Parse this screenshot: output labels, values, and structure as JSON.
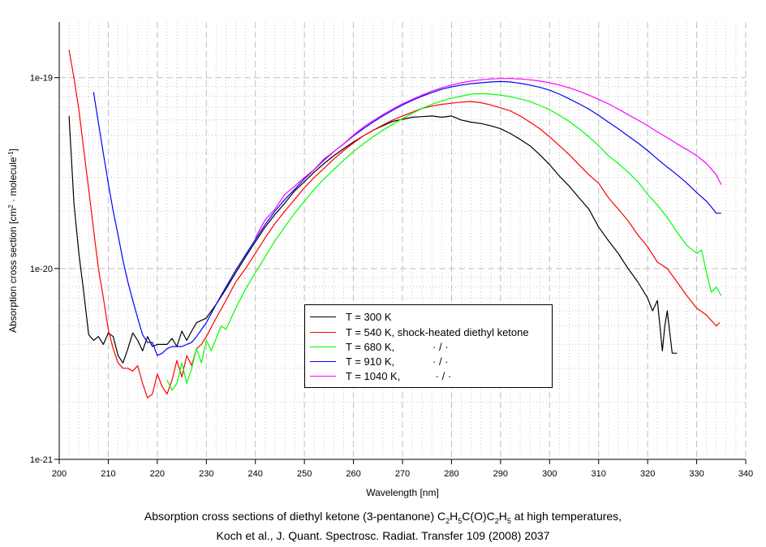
{
  "chart_data": {
    "type": "line",
    "title": "",
    "xlabel": "Wavelength [nm]",
    "ylabel": "Absorption cross section [cm² · molecule⁻¹]",
    "ylabel_parts": {
      "main": "Absorption cross section [cm",
      "sup1": "2",
      "mid": " · molecule",
      "sup2": "-1",
      "end": "]"
    },
    "xlim": [
      200,
      340
    ],
    "ylim": [
      1e-21,
      1.96e-19
    ],
    "yscale": "log",
    "y_unit_factor": 1e-20,
    "grid": true,
    "legend_position": "center-bottom",
    "x_ticks": [
      200,
      210,
      220,
      230,
      240,
      250,
      260,
      270,
      280,
      290,
      300,
      310,
      320,
      330,
      340
    ],
    "y_ticks": [
      {
        "value": 1e-21,
        "label": "1e-21"
      },
      {
        "value": 1e-20,
        "label": "1e-20"
      },
      {
        "value": 1e-19,
        "label": "1e-19"
      }
    ],
    "series": [
      {
        "name": "T = 300 K",
        "legend_label": "T = 300 K",
        "color": "#000000",
        "x": [
          202,
          203,
          204,
          205,
          206,
          207,
          208,
          209,
          210,
          211,
          212,
          213,
          214,
          215,
          216,
          217,
          218,
          219,
          220,
          221,
          222,
          223,
          224,
          225,
          226,
          227,
          228,
          230,
          232,
          234,
          236,
          238,
          240,
          242,
          244,
          246,
          248,
          250,
          252,
          254,
          256,
          258,
          260,
          262,
          264,
          266,
          268,
          270,
          272,
          274,
          276,
          278,
          280,
          282,
          284,
          286,
          288,
          290,
          292,
          294,
          296,
          298,
          300,
          302,
          304,
          306,
          308,
          310,
          312,
          314,
          316,
          318,
          320,
          321,
          322,
          323,
          323.5,
          324,
          325,
          326
        ],
        "values": [
          6.3,
          2.2,
          1.2,
          0.75,
          0.45,
          0.42,
          0.44,
          0.4,
          0.46,
          0.44,
          0.35,
          0.32,
          0.38,
          0.46,
          0.42,
          0.37,
          0.44,
          0.39,
          0.4,
          0.4,
          0.4,
          0.43,
          0.39,
          0.47,
          0.42,
          0.47,
          0.52,
          0.55,
          0.65,
          0.78,
          0.95,
          1.15,
          1.38,
          1.65,
          1.92,
          2.2,
          2.55,
          2.85,
          3.2,
          3.55,
          3.9,
          4.25,
          4.6,
          4.95,
          5.3,
          5.6,
          5.9,
          6.05,
          6.2,
          6.25,
          6.3,
          6.2,
          6.3,
          6.0,
          5.85,
          5.75,
          5.6,
          5.4,
          5.1,
          4.75,
          4.4,
          3.95,
          3.5,
          3.05,
          2.7,
          2.35,
          2.05,
          1.65,
          1.4,
          1.2,
          1.0,
          0.85,
          0.7,
          0.6,
          0.68,
          0.37,
          0.5,
          0.6,
          0.36,
          0.36
        ]
      },
      {
        "name": "T = 540 K, shock-heated diethyl ketone",
        "legend_label": "T = 540 K, shock-heated diethyl ketone",
        "color": "#ff0000",
        "x": [
          202,
          203,
          204,
          205,
          206,
          207,
          208,
          209,
          210,
          211,
          212,
          213,
          214,
          215,
          216,
          217,
          218,
          219,
          220,
          221,
          222,
          223,
          224,
          225,
          226,
          227,
          228,
          229,
          230,
          232,
          234,
          236,
          238,
          240,
          242,
          244,
          246,
          248,
          250,
          252,
          254,
          256,
          258,
          260,
          262,
          264,
          266,
          268,
          270,
          272,
          274,
          276,
          278,
          280,
          282,
          284,
          286,
          288,
          290,
          292,
          294,
          296,
          298,
          300,
          302,
          304,
          306,
          308,
          310,
          312,
          314,
          316,
          318,
          320,
          322,
          324,
          326,
          328,
          330,
          332,
          334,
          334.7
        ],
        "values": [
          14,
          10,
          6.8,
          4.2,
          2.6,
          1.6,
          1.0,
          0.7,
          0.48,
          0.38,
          0.32,
          0.3,
          0.3,
          0.29,
          0.31,
          0.25,
          0.21,
          0.22,
          0.28,
          0.24,
          0.22,
          0.26,
          0.33,
          0.27,
          0.35,
          0.31,
          0.38,
          0.4,
          0.44,
          0.55,
          0.68,
          0.85,
          1.0,
          1.2,
          1.45,
          1.72,
          2.0,
          2.3,
          2.65,
          3.0,
          3.35,
          3.75,
          4.15,
          4.55,
          4.95,
          5.3,
          5.65,
          6.0,
          6.3,
          6.6,
          6.9,
          7.1,
          7.25,
          7.35,
          7.45,
          7.5,
          7.4,
          7.2,
          6.95,
          6.7,
          6.3,
          5.85,
          5.4,
          4.9,
          4.4,
          3.95,
          3.5,
          3.1,
          2.8,
          2.35,
          2.05,
          1.78,
          1.5,
          1.3,
          1.08,
          1.0,
          0.85,
          0.72,
          0.62,
          0.57,
          0.5,
          0.52
        ]
      },
      {
        "name": "T = 680 K, · / ·",
        "legend_label": "T = 680 K,             · / ·",
        "color": "#00ff00",
        "x": [
          222,
          223,
          224,
          225,
          226,
          227,
          228,
          229,
          230,
          231,
          232,
          233,
          234,
          236,
          238,
          240,
          242,
          244,
          246,
          248,
          250,
          252,
          254,
          256,
          258,
          260,
          262,
          264,
          266,
          268,
          270,
          272,
          274,
          276,
          278,
          280,
          282,
          284,
          286,
          288,
          290,
          292,
          294,
          296,
          298,
          300,
          302,
          304,
          306,
          308,
          310,
          312,
          314,
          316,
          318,
          320,
          322,
          324,
          326,
          328,
          330,
          331,
          332,
          333,
          334,
          335
        ],
        "values": [
          0.26,
          0.23,
          0.25,
          0.32,
          0.25,
          0.3,
          0.38,
          0.32,
          0.42,
          0.37,
          0.43,
          0.5,
          0.48,
          0.62,
          0.78,
          0.95,
          1.15,
          1.4,
          1.65,
          1.95,
          2.25,
          2.6,
          2.95,
          3.3,
          3.7,
          4.1,
          4.5,
          4.9,
          5.3,
          5.7,
          6.1,
          6.5,
          6.9,
          7.25,
          7.55,
          7.8,
          8.0,
          8.2,
          8.25,
          8.2,
          8.1,
          7.95,
          7.75,
          7.5,
          7.15,
          6.8,
          6.35,
          5.9,
          5.4,
          4.9,
          4.4,
          3.9,
          3.55,
          3.2,
          2.85,
          2.45,
          2.15,
          1.85,
          1.55,
          1.32,
          1.2,
          1.25,
          0.95,
          0.75,
          0.8,
          0.72
        ]
      },
      {
        "name": "T = 910 K, · / ·",
        "legend_label": "T = 910 K,             · / ·",
        "color": "#0000ff",
        "x": [
          207,
          208,
          209,
          210,
          211,
          212,
          213,
          214,
          215,
          216,
          217,
          218,
          219,
          220,
          221,
          222,
          223,
          224,
          225,
          226,
          227,
          228,
          230,
          232,
          234,
          236,
          238,
          240,
          242,
          244,
          246,
          248,
          250,
          252,
          254,
          256,
          258,
          260,
          262,
          264,
          266,
          268,
          270,
          272,
          274,
          276,
          278,
          280,
          282,
          284,
          286,
          288,
          290,
          292,
          294,
          296,
          298,
          300,
          302,
          304,
          306,
          308,
          310,
          312,
          314,
          316,
          318,
          320,
          322,
          324,
          326,
          328,
          330,
          332,
          333,
          334,
          335
        ],
        "values": [
          8.4,
          5.8,
          4.0,
          2.8,
          2.0,
          1.5,
          1.1,
          0.85,
          0.68,
          0.55,
          0.45,
          0.41,
          0.41,
          0.35,
          0.36,
          0.38,
          0.39,
          0.39,
          0.39,
          0.4,
          0.41,
          0.44,
          0.52,
          0.65,
          0.8,
          0.98,
          1.18,
          1.42,
          1.7,
          2.0,
          2.3,
          2.6,
          2.95,
          3.3,
          3.7,
          4.1,
          4.5,
          4.95,
          5.4,
          5.85,
          6.3,
          6.75,
          7.2,
          7.6,
          8.0,
          8.35,
          8.7,
          8.95,
          9.15,
          9.3,
          9.4,
          9.5,
          9.55,
          9.5,
          9.35,
          9.15,
          8.9,
          8.6,
          8.2,
          7.75,
          7.3,
          6.85,
          6.35,
          5.85,
          5.4,
          4.95,
          4.55,
          4.15,
          3.75,
          3.4,
          3.1,
          2.8,
          2.5,
          2.25,
          2.1,
          1.95,
          1.95
        ]
      },
      {
        "name": "T = 1040 K, · / ·",
        "legend_label": "T = 1040 K,            · / ·",
        "color": "#ff00ff",
        "x": [
          240,
          242,
          244,
          246,
          248,
          250,
          252,
          254,
          256,
          258,
          260,
          262,
          264,
          266,
          268,
          270,
          272,
          274,
          276,
          278,
          280,
          282,
          284,
          286,
          288,
          290,
          292,
          294,
          296,
          298,
          300,
          302,
          304,
          306,
          308,
          310,
          312,
          314,
          316,
          318,
          320,
          322,
          324,
          326,
          328,
          330,
          332,
          334,
          335
        ],
        "values": [
          1.45,
          1.8,
          2.05,
          2.45,
          2.7,
          3.0,
          3.3,
          3.75,
          4.1,
          4.5,
          5.0,
          5.5,
          5.95,
          6.4,
          6.85,
          7.3,
          7.7,
          8.1,
          8.5,
          8.85,
          9.15,
          9.4,
          9.6,
          9.75,
          9.85,
          9.9,
          9.9,
          9.85,
          9.75,
          9.6,
          9.4,
          9.15,
          8.85,
          8.5,
          8.1,
          7.7,
          7.3,
          6.85,
          6.4,
          6.0,
          5.6,
          5.2,
          4.85,
          4.5,
          4.2,
          3.9,
          3.55,
          3.1,
          2.75
        ]
      }
    ]
  },
  "caption": {
    "line1_prefix": "Absorption cross sections of diethyl ketone (3-pentanone) C",
    "line1_formula": [
      {
        "t": "2",
        "sub": true
      },
      {
        "t": "H",
        "sub": false
      },
      {
        "t": "5",
        "sub": true
      },
      {
        "t": "C(O)C",
        "sub": false
      },
      {
        "t": "2",
        "sub": true
      },
      {
        "t": "H",
        "sub": false
      },
      {
        "t": "5",
        "sub": true
      }
    ],
    "line1_suffix": " at high temperatures,",
    "line2": "Koch et al., J. Quant. Spectrosc. Radiat. Transfer 109 (2008) 2037"
  }
}
